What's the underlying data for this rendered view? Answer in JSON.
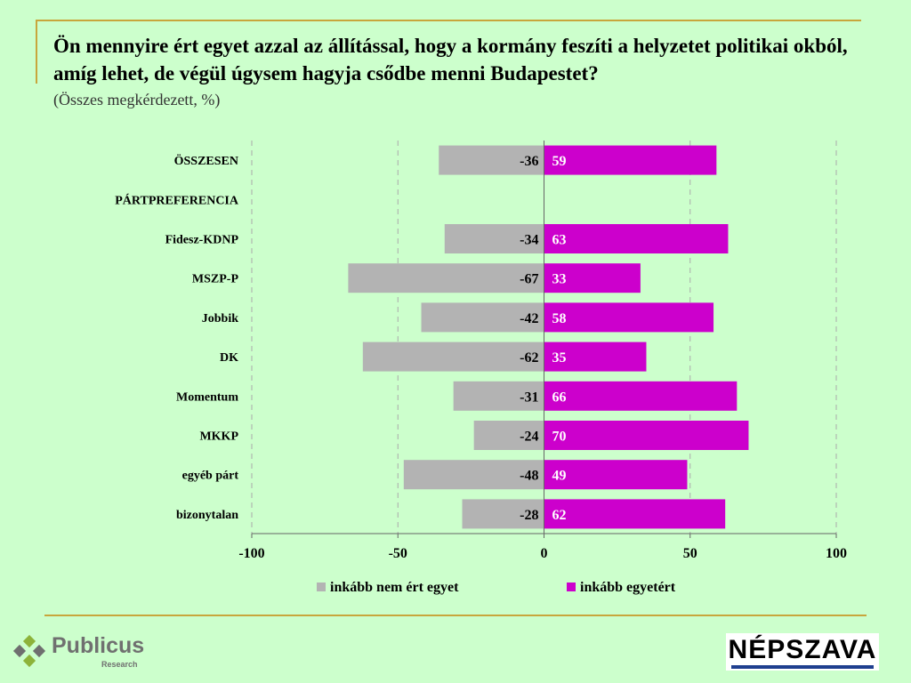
{
  "title": "Ön mennyire ért egyet azzal az állítással, hogy a kormány feszíti a helyzetet politikai okból, amíg lehet, de végül úgysem hagyja csődbe menni Budapestet?",
  "subtitle": "(Összes megkérdezett, %)",
  "colors": {
    "negative": "#b3b3b3",
    "positive": "#cc00cc",
    "background": "#ccffcc",
    "rule": "#c8a63c"
  },
  "chart_data": {
    "type": "bar",
    "orientation": "horizontal-diverging",
    "categories": [
      "ÖSSZESEN",
      "PÁRTPREFERENCIA",
      "Fidesz-KDNP",
      "MSZP-P",
      "Jobbik",
      "DK",
      "Momentum",
      "MKKP",
      "egyéb párt",
      "bizonytalan"
    ],
    "series": [
      {
        "name": "inkább nem ért egyet",
        "values": [
          -36,
          null,
          -34,
          -67,
          -42,
          -62,
          -31,
          -24,
          -48,
          -28
        ]
      },
      {
        "name": "inkább egyetért",
        "values": [
          59,
          null,
          63,
          33,
          58,
          35,
          66,
          70,
          49,
          62
        ]
      }
    ],
    "xlim": [
      -100,
      100
    ],
    "xticks": [
      -100,
      -50,
      0,
      50,
      100
    ],
    "grid": true,
    "legend": "bottom"
  },
  "logos": {
    "publicus_name": "Publicus",
    "publicus_sub": "Research",
    "nepszava_name": "NÉPSZAVA"
  }
}
